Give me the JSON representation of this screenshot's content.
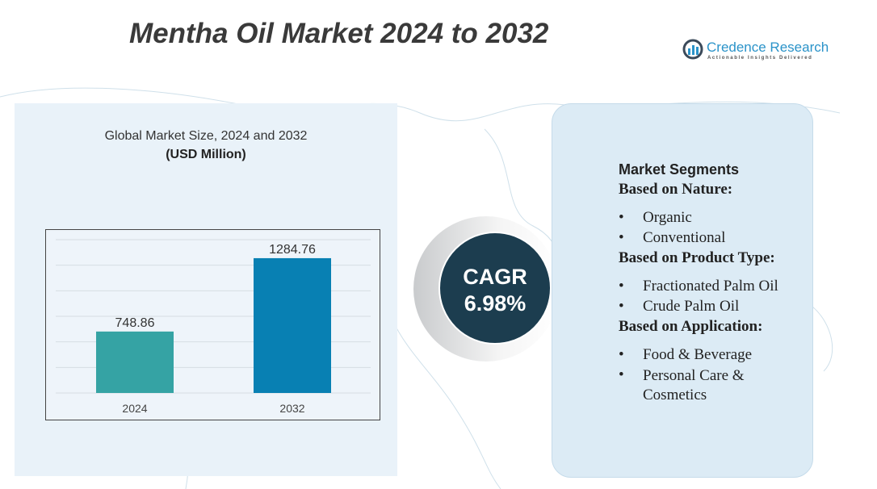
{
  "title": "Mentha Oil Market 2024 to 2032",
  "logo": {
    "name": "Credence Research",
    "tagline": "Actionable Insights Delivered"
  },
  "chart_heading": "Global Market Size, 2024 and 2032",
  "chart_unit": "(USD Million)",
  "chart_data": {
    "type": "bar",
    "categories": [
      "2024",
      "2032"
    ],
    "values": [
      748.86,
      1284.76
    ],
    "data_labels": [
      "748.86",
      "1284.76"
    ],
    "colors": [
      "#35a3a4",
      "#0880b3"
    ],
    "grid": true,
    "ylim": [
      300,
      1420
    ]
  },
  "cagr": {
    "label": "CAGR",
    "value": "6.98%"
  },
  "segments": {
    "heading": "Market Segments",
    "groups": [
      {
        "title": "Based on Nature:",
        "items": [
          "Organic",
          "Conventional"
        ]
      },
      {
        "title": "Based on Product Type:",
        "items": [
          "Fractionated Palm Oil",
          "Crude Palm Oil"
        ]
      },
      {
        "title": "Based on Application:",
        "items": [
          "Food & Beverage",
          "Personal Care & Cosmetics"
        ]
      }
    ]
  }
}
